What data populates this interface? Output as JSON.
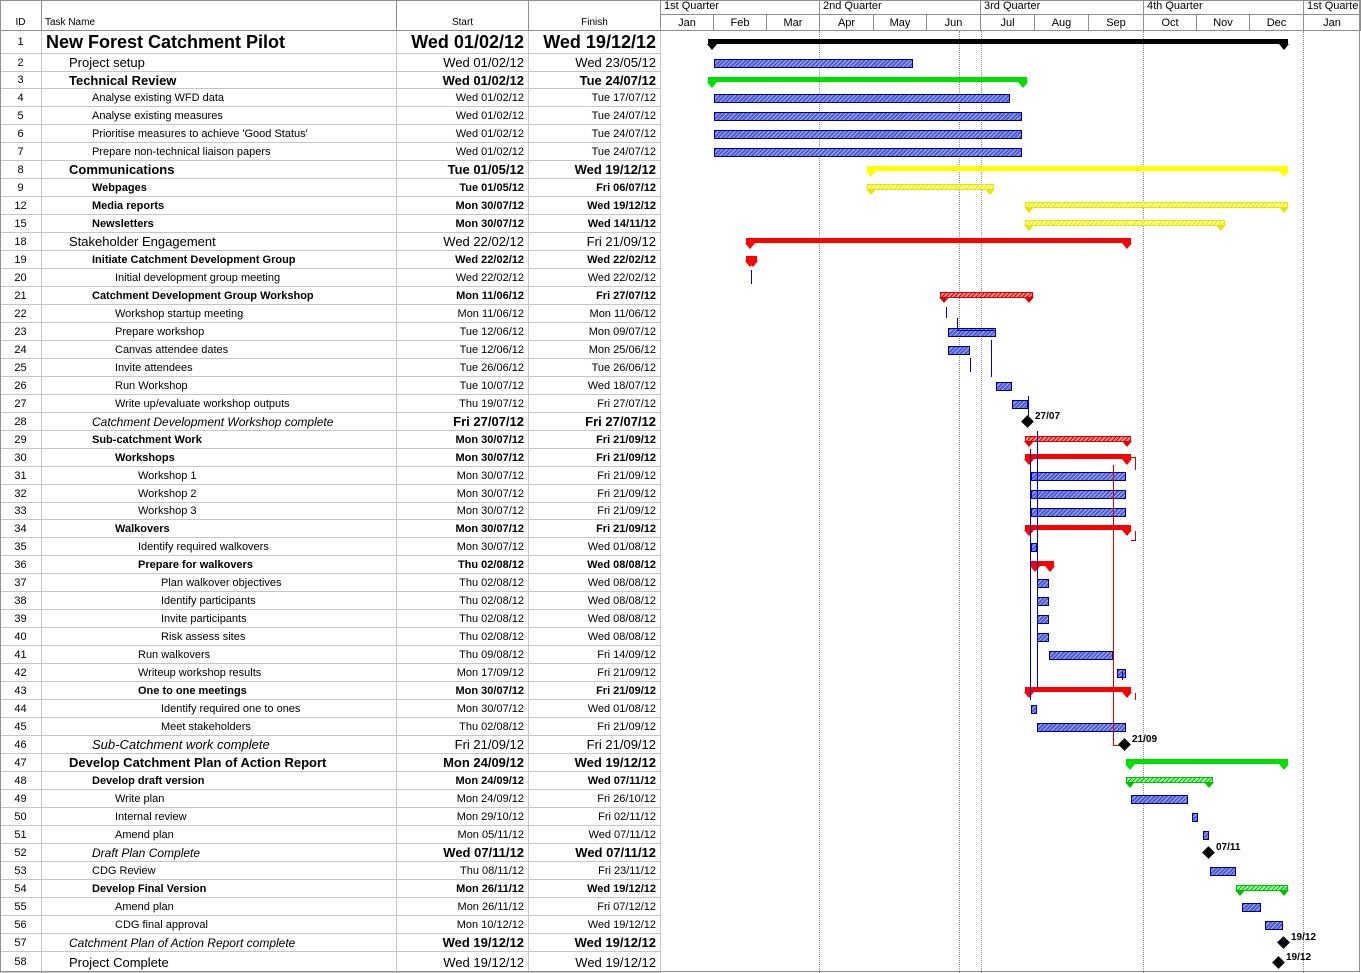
{
  "columns": {
    "id": "ID",
    "name": "Task Name",
    "start": "Start",
    "finish": "Finish"
  },
  "timescale": {
    "quarters": [
      "1st Quarter",
      "2nd Quarter",
      "3rd Quarter",
      "4th Quarter",
      "1st Quarte"
    ],
    "months": [
      "Jan",
      "Feb",
      "Mar",
      "Apr",
      "May",
      "Jun",
      "Jul",
      "Aug",
      "Sep",
      "Oct",
      "Nov",
      "Dec",
      "Jan"
    ]
  },
  "colors": {
    "summary_black": "#000000",
    "tech_green": "#00e000",
    "comms_yellow": "#ffff00",
    "stake_red": "#ff0000",
    "task_blue": "#4c5bd6"
  },
  "tasks": [
    {
      "id": "1",
      "name": "New Forest Catchment Pilot",
      "start": "Wed 01/02/12",
      "finish": "Wed 19/12/12",
      "style": "s1",
      "indent": 0
    },
    {
      "id": "2",
      "name": "Project setup",
      "start": "Wed 01/02/12",
      "finish": "Wed 23/05/12",
      "style": "s2",
      "indent": 1
    },
    {
      "id": "3",
      "name": "Technical Review",
      "start": "Wed 01/02/12",
      "finish": "Tue 24/07/12",
      "style": "s2b",
      "indent": 1
    },
    {
      "id": "4",
      "name": "Analyse existing WFD data",
      "start": "Wed 01/02/12",
      "finish": "Tue 17/07/12",
      "style": "s3",
      "indent": 2
    },
    {
      "id": "5",
      "name": "Analyse existing measures",
      "start": "Wed 01/02/12",
      "finish": "Tue 24/07/12",
      "style": "s3",
      "indent": 2
    },
    {
      "id": "6",
      "name": "Prioritise measures to achieve 'Good Status'",
      "start": "Wed 01/02/12",
      "finish": "Tue 24/07/12",
      "style": "s3",
      "indent": 2
    },
    {
      "id": "7",
      "name": "Prepare non-technical liaison papers",
      "start": "Wed 01/02/12",
      "finish": "Tue 24/07/12",
      "style": "s3",
      "indent": 2
    },
    {
      "id": "8",
      "name": "Communications",
      "start": "Tue 01/05/12",
      "finish": "Wed 19/12/12",
      "style": "s2b",
      "indent": 1
    },
    {
      "id": "9",
      "name": "Webpages",
      "start": "Tue 01/05/12",
      "finish": "Fri 06/07/12",
      "style": "s3b",
      "indent": 2
    },
    {
      "id": "12",
      "name": "Media reports",
      "start": "Mon 30/07/12",
      "finish": "Wed 19/12/12",
      "style": "s3b",
      "indent": 2
    },
    {
      "id": "15",
      "name": "Newsletters",
      "start": "Mon 30/07/12",
      "finish": "Wed 14/11/12",
      "style": "s3b",
      "indent": 2
    },
    {
      "id": "18",
      "name": "Stakeholder Engagement",
      "start": "Wed 22/02/12",
      "finish": "Fri 21/09/12",
      "style": "s2",
      "indent": 1
    },
    {
      "id": "19",
      "name": "Initiate Catchment Development Group",
      "start": "Wed 22/02/12",
      "finish": "Wed 22/02/12",
      "style": "s3b",
      "indent": 2
    },
    {
      "id": "20",
      "name": "Initial development group meeting",
      "start": "Wed 22/02/12",
      "finish": "Wed 22/02/12",
      "style": "s3",
      "indent": 3
    },
    {
      "id": "21",
      "name": "Catchment Development Group Workshop",
      "start": "Mon 11/06/12",
      "finish": "Fri 27/07/12",
      "style": "s3b",
      "indent": 2
    },
    {
      "id": "22",
      "name": "Workshop startup meeting",
      "start": "Mon 11/06/12",
      "finish": "Mon 11/06/12",
      "style": "s3",
      "indent": 3
    },
    {
      "id": "23",
      "name": "Prepare workshop",
      "start": "Tue 12/06/12",
      "finish": "Mon 09/07/12",
      "style": "s3",
      "indent": 3
    },
    {
      "id": "24",
      "name": "Canvas attendee dates",
      "start": "Tue 12/06/12",
      "finish": "Mon 25/06/12",
      "style": "s3",
      "indent": 3
    },
    {
      "id": "25",
      "name": "Invite attendees",
      "start": "Tue 26/06/12",
      "finish": "Tue 26/06/12",
      "style": "s3",
      "indent": 3
    },
    {
      "id": "26",
      "name": "Run Workshop",
      "start": "Tue 10/07/12",
      "finish": "Wed 18/07/12",
      "style": "s3",
      "indent": 3
    },
    {
      "id": "27",
      "name": "Write up/evaluate workshop outputs",
      "start": "Thu 19/07/12",
      "finish": "Fri 27/07/12",
      "style": "s3",
      "indent": 3
    },
    {
      "id": "28",
      "name": "Catchment Development Workshop complete",
      "start": "Fri 27/07/12",
      "finish": "Fri 27/07/12",
      "style": "it13",
      "indent": 2
    },
    {
      "id": "29",
      "name": "Sub-catchment Work",
      "start": "Mon 30/07/12",
      "finish": "Fri 21/09/12",
      "style": "s3b",
      "indent": 2
    },
    {
      "id": "30",
      "name": "Workshops",
      "start": "Mon 30/07/12",
      "finish": "Fri 21/09/12",
      "style": "s3b",
      "indent": 3
    },
    {
      "id": "31",
      "name": "Workshop 1",
      "start": "Mon 30/07/12",
      "finish": "Fri 21/09/12",
      "style": "s3",
      "indent": 4
    },
    {
      "id": "32",
      "name": "Workshop 2",
      "start": "Mon 30/07/12",
      "finish": "Fri 21/09/12",
      "style": "s3",
      "indent": 4
    },
    {
      "id": "33",
      "name": "Workshop 3",
      "start": "Mon 30/07/12",
      "finish": "Fri 21/09/12",
      "style": "s3",
      "indent": 4
    },
    {
      "id": "34",
      "name": "Walkovers",
      "start": "Mon 30/07/12",
      "finish": "Fri 21/09/12",
      "style": "s3b",
      "indent": 3
    },
    {
      "id": "35",
      "name": "Identify required walkovers",
      "start": "Mon 30/07/12",
      "finish": "Wed 01/08/12",
      "style": "s3",
      "indent": 4
    },
    {
      "id": "36",
      "name": "Prepare for walkovers",
      "start": "Thu 02/08/12",
      "finish": "Wed 08/08/12",
      "style": "s3b",
      "indent": 4
    },
    {
      "id": "37",
      "name": "Plan walkover objectives",
      "start": "Thu 02/08/12",
      "finish": "Wed 08/08/12",
      "style": "s3",
      "indent": 5
    },
    {
      "id": "38",
      "name": "Identify participants",
      "start": "Thu 02/08/12",
      "finish": "Wed 08/08/12",
      "style": "s3",
      "indent": 5
    },
    {
      "id": "39",
      "name": "Invite participants",
      "start": "Thu 02/08/12",
      "finish": "Wed 08/08/12",
      "style": "s3",
      "indent": 5
    },
    {
      "id": "40",
      "name": "Risk assess sites",
      "start": "Thu 02/08/12",
      "finish": "Wed 08/08/12",
      "style": "s3",
      "indent": 5
    },
    {
      "id": "41",
      "name": "Run walkovers",
      "start": "Thu 09/08/12",
      "finish": "Fri 14/09/12",
      "style": "s3",
      "indent": 4
    },
    {
      "id": "42",
      "name": "Writeup workshop results",
      "start": "Mon 17/09/12",
      "finish": "Fri 21/09/12",
      "style": "s3",
      "indent": 4
    },
    {
      "id": "43",
      "name": "One to one meetings",
      "start": "Mon 30/07/12",
      "finish": "Fri 21/09/12",
      "style": "s3b",
      "indent": 4
    },
    {
      "id": "44",
      "name": "Identify required one to ones",
      "start": "Mon 30/07/12",
      "finish": "Wed 01/08/12",
      "style": "s3",
      "indent": 5
    },
    {
      "id": "45",
      "name": "Meet stakeholders",
      "start": "Thu 02/08/12",
      "finish": "Fri 21/09/12",
      "style": "s3",
      "indent": 5
    },
    {
      "id": "46",
      "name": "Sub-Catchment work complete",
      "start": "Fri 21/09/12",
      "finish": "Fri 21/09/12",
      "style": "ms2",
      "indent": 2
    },
    {
      "id": "47",
      "name": "Develop Catchment Plan of Action Report",
      "start": "Mon 24/09/12",
      "finish": "Wed 19/12/12",
      "style": "s2b",
      "indent": 1
    },
    {
      "id": "48",
      "name": "Develop draft version",
      "start": "Mon 24/09/12",
      "finish": "Wed 07/11/12",
      "style": "s3b",
      "indent": 2
    },
    {
      "id": "49",
      "name": "Write plan",
      "start": "Mon 24/09/12",
      "finish": "Fri 26/10/12",
      "style": "s3",
      "indent": 3
    },
    {
      "id": "50",
      "name": "Internal review",
      "start": "Mon 29/10/12",
      "finish": "Fri 02/11/12",
      "style": "s3",
      "indent": 3
    },
    {
      "id": "51",
      "name": "Amend plan",
      "start": "Mon 05/11/12",
      "finish": "Wed 07/11/12",
      "style": "s3",
      "indent": 3
    },
    {
      "id": "52",
      "name": "Draft Plan Complete",
      "start": "Wed 07/11/12",
      "finish": "Wed 07/11/12",
      "style": "it13",
      "indent": 2
    },
    {
      "id": "53",
      "name": "CDG Review",
      "start": "Thu 08/11/12",
      "finish": "Fri 23/11/12",
      "style": "s3",
      "indent": 2
    },
    {
      "id": "54",
      "name": "Develop Final Version",
      "start": "Mon 26/11/12",
      "finish": "Wed 19/12/12",
      "style": "s3b",
      "indent": 2
    },
    {
      "id": "55",
      "name": "Amend plan",
      "start": "Mon 26/11/12",
      "finish": "Fri 07/12/12",
      "style": "s3",
      "indent": 3
    },
    {
      "id": "56",
      "name": "CDG final approval",
      "start": "Mon 10/12/12",
      "finish": "Wed 19/12/12",
      "style": "s3",
      "indent": 3
    },
    {
      "id": "57",
      "name": "Catchment Plan of Action Report complete",
      "start": "Wed 19/12/12",
      "finish": "Wed 19/12/12",
      "style": "it13",
      "indent": 1
    },
    {
      "id": "58",
      "name": "Project Complete",
      "start": "Wed 19/12/12",
      "finish": "Wed 19/12/12",
      "style": "s2",
      "indent": 1
    }
  ],
  "milestone_labels": [
    "27/07",
    "21/09",
    "07/11",
    "19/12",
    "19/12"
  ]
}
